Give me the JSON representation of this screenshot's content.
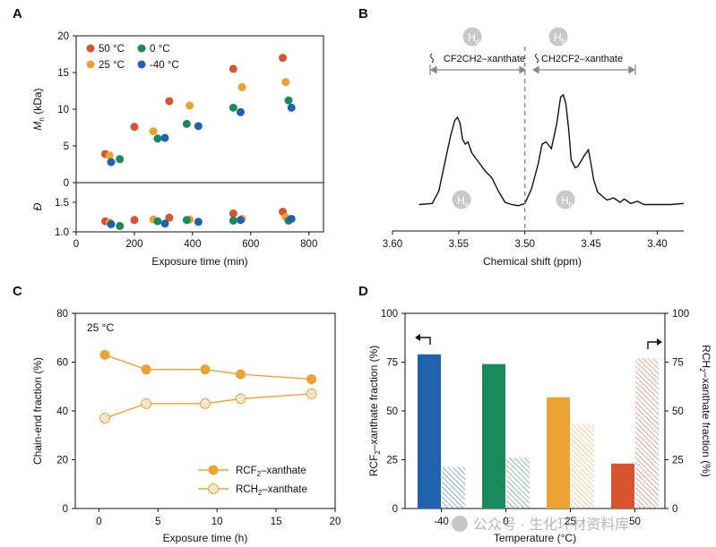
{
  "panels": {
    "A": "A",
    "B": "B",
    "C": "C",
    "D": "D"
  },
  "colors": {
    "c50": "#d8532f",
    "c25": "#eda234",
    "c0": "#1a8a5e",
    "cm40": "#1f62ad",
    "line": "#eda234",
    "nmr": "#111111",
    "circle": "#c9c9c9"
  },
  "chart_data": [
    {
      "id": "A",
      "type": "scatter",
      "xlabel": "Exposure time (min)",
      "xlim": [
        0,
        850
      ],
      "xticks": [
        "0",
        "200",
        "400",
        "600",
        "800"
      ],
      "ylabel_top": "Mn (kDa)",
      "ylabel_top_main": "M",
      "ylabel_top_sub": "n",
      "ylabel_top_unit": " (kDa)",
      "ylim_top": [
        0,
        20
      ],
      "yticks_top": [
        "0",
        "5",
        "10",
        "15",
        "20"
      ],
      "ylabel_bottom": "Đ",
      "ylim_bottom": [
        1.0,
        1.5
      ],
      "yticks_bottom": [
        "1.0",
        "1.5"
      ],
      "legend": [
        "50 °C",
        "25 °C",
        "0 °C",
        "-40 °C"
      ],
      "series": [
        {
          "name": "50 °C",
          "color_key": "c50",
          "x": [
            100,
            200,
            320,
            540,
            710
          ],
          "mn": [
            3.9,
            7.6,
            11.1,
            15.5,
            17.0
          ],
          "dispersity": [
            1.18,
            1.2,
            1.24,
            1.31,
            1.34
          ]
        },
        {
          "name": "25 °C",
          "color_key": "c25",
          "x": [
            115,
            265,
            390,
            570,
            720
          ],
          "mn": [
            3.7,
            7.0,
            10.5,
            13.0,
            13.7
          ],
          "dispersity": [
            1.16,
            1.21,
            1.21,
            1.22,
            1.25
          ]
        },
        {
          "name": "0 °C",
          "color_key": "c0",
          "x": [
            150,
            280,
            380,
            540,
            730
          ],
          "mn": [
            3.2,
            6.0,
            8.0,
            10.2,
            11.2
          ],
          "dispersity": [
            1.1,
            1.18,
            1.2,
            1.19,
            1.19
          ]
        },
        {
          "name": "-40 °C",
          "color_key": "cm40",
          "x": [
            120,
            305,
            420,
            565,
            740
          ],
          "mn": [
            2.8,
            6.1,
            7.7,
            9.6,
            10.2
          ],
          "dispersity": [
            1.13,
            1.14,
            1.17,
            1.2,
            1.22
          ]
        }
      ]
    },
    {
      "id": "B",
      "type": "line",
      "xlabel": "Chemical shift (ppm)",
      "xlim": [
        3.6,
        3.38
      ],
      "xticks": [
        "3.60",
        "3.55",
        "3.50",
        "3.45",
        "3.40"
      ],
      "divider_ppm": 3.5,
      "x": [
        3.58,
        3.57,
        3.565,
        3.56,
        3.556,
        3.553,
        3.551,
        3.549,
        3.547,
        3.545,
        3.543,
        3.54,
        3.535,
        3.53,
        3.525,
        3.52,
        3.515,
        3.51,
        3.505,
        3.5,
        3.495,
        3.49,
        3.487,
        3.484,
        3.48,
        3.476,
        3.473,
        3.471,
        3.469,
        3.467,
        3.465,
        3.462,
        3.46,
        3.458,
        3.455,
        3.452,
        3.45,
        3.448,
        3.445,
        3.442,
        3.438,
        3.433,
        3.428,
        3.425,
        3.42,
        3.415,
        3.41,
        3.4,
        3.39,
        3.38
      ],
      "intensity": [
        0.02,
        0.03,
        0.14,
        0.42,
        0.64,
        0.77,
        0.8,
        0.75,
        0.6,
        0.56,
        0.58,
        0.48,
        0.4,
        0.32,
        0.26,
        0.14,
        0.04,
        0.02,
        0.01,
        0.03,
        0.16,
        0.38,
        0.56,
        0.58,
        0.52,
        0.74,
        0.98,
        1.0,
        0.92,
        0.7,
        0.42,
        0.35,
        0.36,
        0.4,
        0.46,
        0.51,
        0.38,
        0.24,
        0.13,
        0.1,
        0.06,
        0.08,
        0.04,
        0.07,
        0.03,
        0.05,
        0.02,
        0.02,
        0.02,
        0.03
      ],
      "structures": [
        "CF2CH2–xanthate",
        "CH2CF2–xanthate"
      ],
      "labels": {
        "Ha_main": "H",
        "Ha_sub": "a",
        "Hb_main": "H",
        "Hb_sub": "b"
      }
    },
    {
      "id": "C",
      "type": "line",
      "annotation": "25 °C",
      "xlabel": "Exposure time (h)",
      "xlim": [
        -2,
        20
      ],
      "xticks": [
        "0",
        "5",
        "10",
        "15",
        "20"
      ],
      "ylabel": "Chain-end fraction (%)",
      "ylim": [
        0,
        80
      ],
      "yticks": [
        "0",
        "20",
        "40",
        "60",
        "80"
      ],
      "series": [
        {
          "name": "RCF2–xanthate",
          "x": [
            0.5,
            4,
            9,
            12,
            18
          ],
          "values": [
            63,
            57,
            57,
            55,
            53
          ]
        },
        {
          "name": "RCH2–xanthate",
          "x": [
            0.5,
            4,
            9,
            12,
            18
          ],
          "values": [
            37,
            43,
            43,
            45,
            47
          ]
        }
      ],
      "legend": {
        "rcf2": {
          "a": "RCF",
          "s": "2",
          "b": "–xanthate"
        },
        "rch2": {
          "a": "RCH",
          "s": "2",
          "b": "–xanthate"
        }
      }
    },
    {
      "id": "D",
      "type": "bar",
      "xlabel": "Temperature (°C)",
      "categories": [
        "-40",
        "0",
        "25",
        "50"
      ],
      "ylim": [
        0,
        100
      ],
      "yticks": [
        "0",
        "25",
        "50",
        "75",
        "100"
      ],
      "ylabel_left": {
        "a": "RCF",
        "s": "2",
        "b": "–xanthate fraction (%)"
      },
      "ylabel_right": {
        "a": "RCH",
        "s": "2",
        "b": "–xanthate fraction (%)"
      },
      "series": [
        {
          "name": "RCF2–xanthate",
          "axis": "left",
          "values": [
            79,
            74,
            57,
            23
          ]
        },
        {
          "name": "RCH2–xanthate",
          "axis": "right",
          "values": [
            21,
            26,
            43,
            77
          ]
        }
      ],
      "color_keys": [
        "cm40",
        "c0",
        "c25",
        "c50"
      ]
    }
  ],
  "watermark": "公众号 · 生化环材资料库"
}
